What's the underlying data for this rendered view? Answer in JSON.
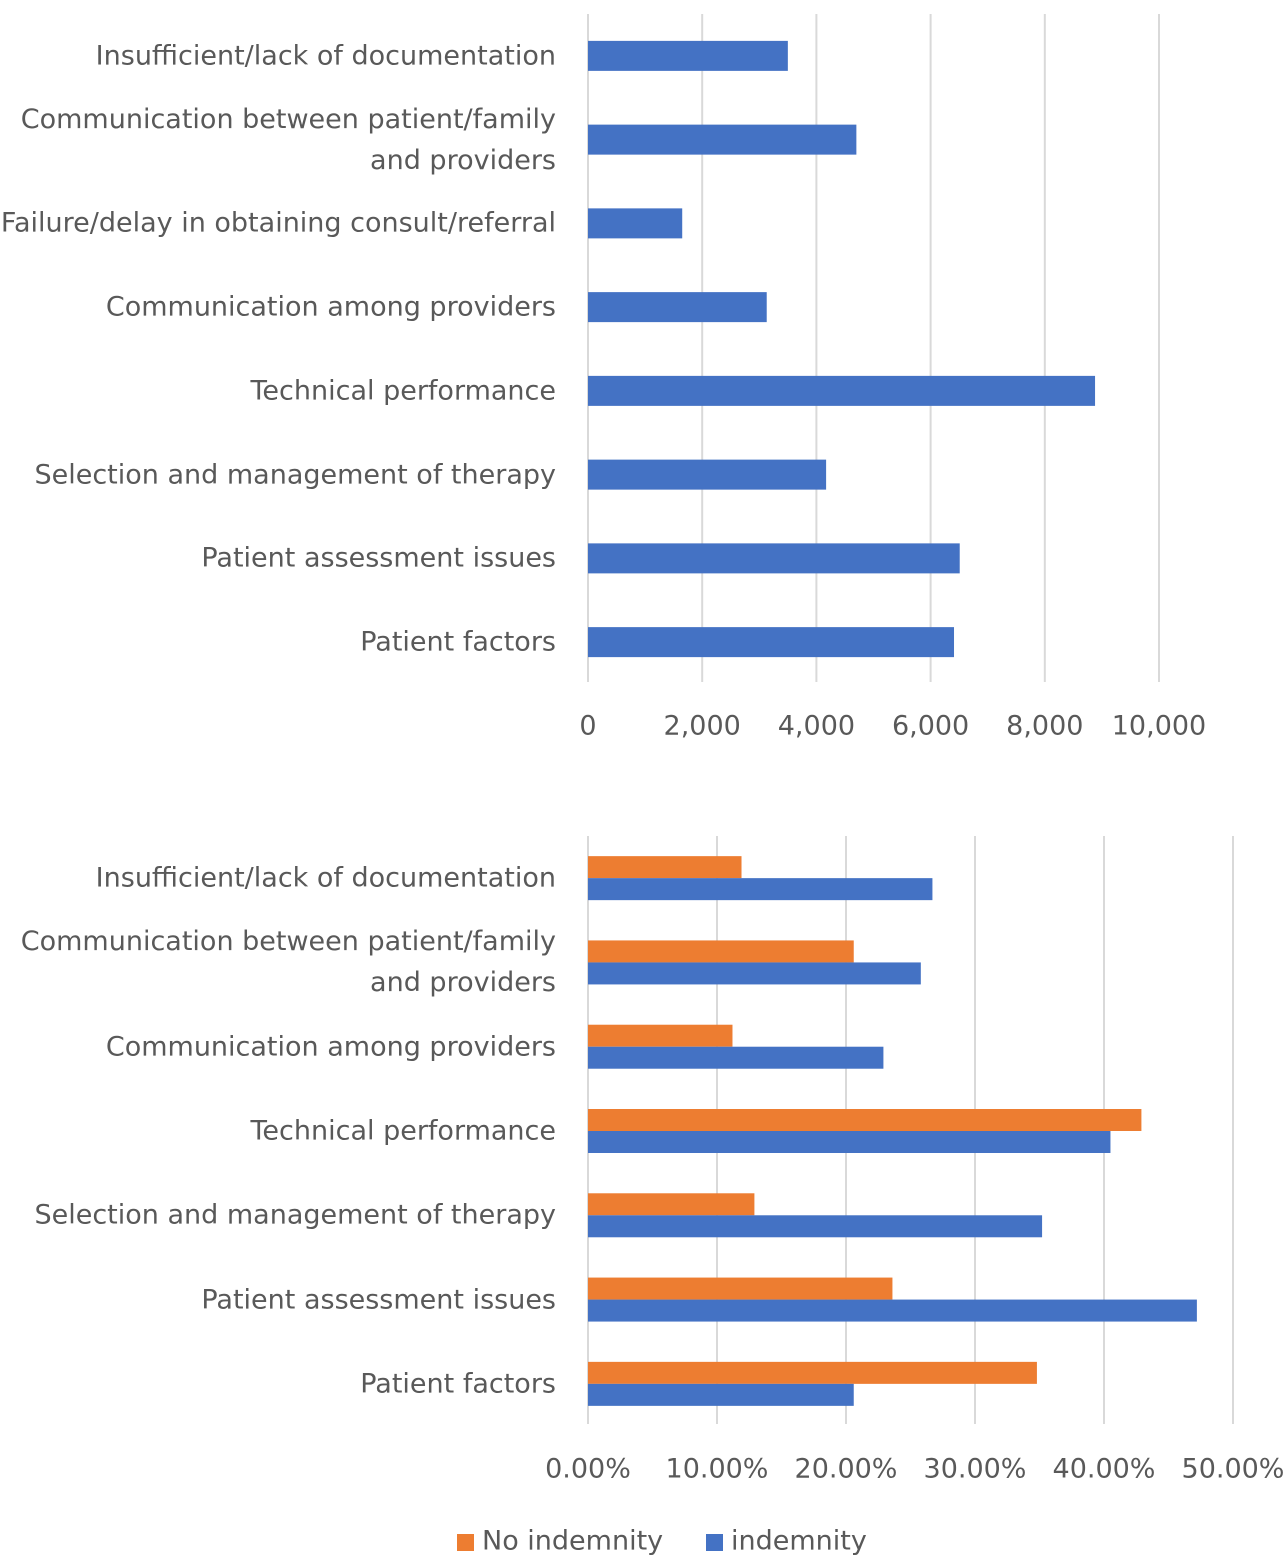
{
  "chart_data": [
    {
      "type": "bar",
      "orientation": "horizontal",
      "categories": [
        "Insufficient/lack of documentation",
        "Communication between patient/family and providers",
        "Failure/delay in obtaining consult/referral",
        "Communication among providers",
        "Technical performance",
        "Selection and management of therapy",
        "Patient assessment issues",
        "Patient factors"
      ],
      "values": [
        3500,
        4700,
        1650,
        3130,
        8880,
        4170,
        6510,
        6410
      ],
      "color": "#4472c4",
      "xlim": [
        0,
        10000
      ],
      "xticks": [
        0,
        {
          "value": 2000,
          "label": "2,000"
        },
        {
          "value": 4000,
          "label": "4,000"
        },
        {
          "value": 6000,
          "label": "6,000"
        },
        {
          "value": 8000,
          "label": "8,000"
        },
        {
          "value": 10000,
          "label": "10,000"
        }
      ],
      "grid": true
    },
    {
      "type": "bar",
      "orientation": "horizontal",
      "categories": [
        "Insufficient/lack of documentation",
        "Communication between patient/family and providers",
        "Communication among providers",
        "Technical performance",
        "Selection and management of therapy",
        "Patient assessment issues",
        "Patient factors"
      ],
      "series": [
        {
          "name": "No indemnity",
          "color": "#ed7d31",
          "values": [
            11.9,
            20.6,
            11.2,
            42.9,
            12.9,
            23.6,
            34.8
          ]
        },
        {
          "name": "indemnity",
          "color": "#4472c4",
          "values": [
            26.7,
            25.8,
            22.9,
            40.5,
            35.2,
            47.2,
            20.6
          ]
        }
      ],
      "xlim": [
        0,
        50
      ],
      "xticks": [
        {
          "value": 0,
          "label": "0.00%"
        },
        {
          "value": 10,
          "label": "10.00%"
        },
        {
          "value": 20,
          "label": "20.00%"
        },
        {
          "value": 30,
          "label": "30.00%"
        },
        {
          "value": 40,
          "label": "40.00%"
        },
        {
          "value": 50,
          "label": "50.00%"
        }
      ],
      "grid": true,
      "legend": "bottom"
    }
  ]
}
